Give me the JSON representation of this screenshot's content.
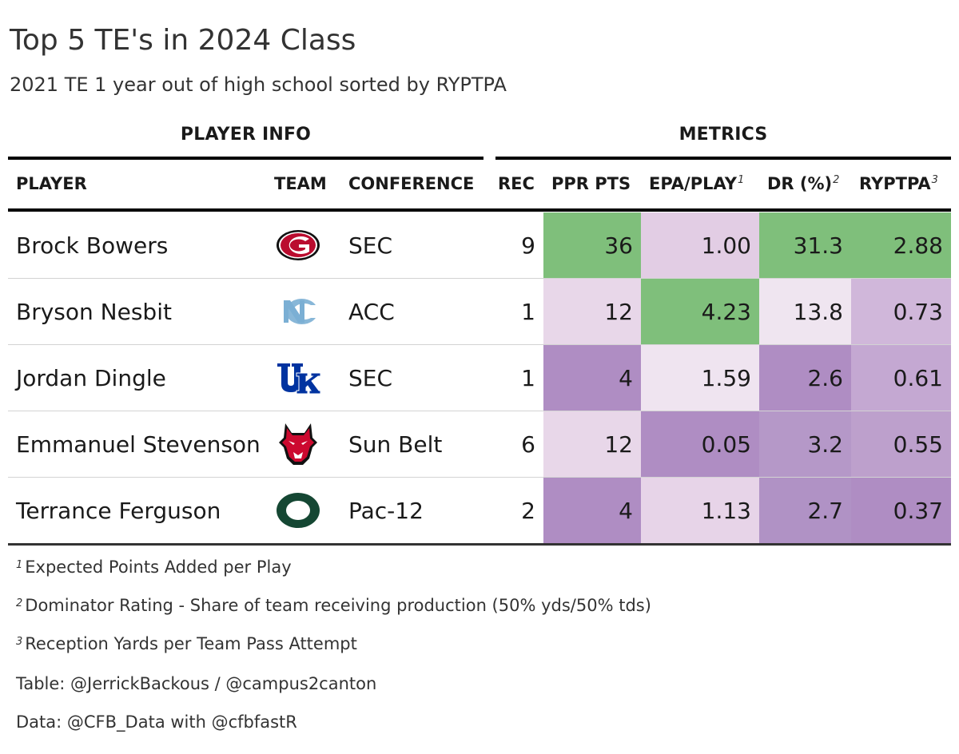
{
  "title": "Top 5 TE's in 2024 Class",
  "subtitle": "2021 TE 1 year out of high school sorted by RYPTPA",
  "spanners": {
    "player_info": "PLAYER INFO",
    "metrics": "METRICS"
  },
  "columns": {
    "player": "PLAYER",
    "team": "TEAM",
    "conference": "CONFERENCE",
    "rec": "REC",
    "ppr": "PPR PTS",
    "epa": "EPA/PLAY",
    "epa_note": "1",
    "dr": "DR (%)",
    "dr_note": "2",
    "ryptpa": "RYPTPA",
    "ryptpa_note": "3"
  },
  "colors": {
    "green": "#7fbf7b",
    "purple_dark": "#af8dc3",
    "purple_light": "#e7d4e8",
    "white": "#f7f7f7"
  },
  "chart_data": {
    "type": "table",
    "rows": [
      {
        "player": "Brock Bowers",
        "team_logo": "georgia-logo-icon",
        "conference": "SEC",
        "rec": "9",
        "ppr": "36",
        "epa": "1.00",
        "dr": "31.3",
        "ryptpa": "2.88",
        "colors": {
          "ppr": "#7fbf7b",
          "epa": "#e2cde4",
          "dr": "#7fbf7b",
          "ryptpa": "#7fbf7b"
        }
      },
      {
        "player": "Bryson Nesbit",
        "team_logo": "unc-logo-icon",
        "conference": "ACC",
        "rec": "1",
        "ppr": "12",
        "epa": "4.23",
        "dr": "13.8",
        "ryptpa": "0.73",
        "colors": {
          "ppr": "#e8d7e9",
          "epa": "#7fbf7b",
          "dr": "#efe5f0",
          "ryptpa": "#d0b7da"
        }
      },
      {
        "player": "Jordan Dingle",
        "team_logo": "kentucky-logo-icon",
        "conference": "SEC",
        "rec": "1",
        "ppr": "4",
        "epa": "1.59",
        "dr": "2.6",
        "ryptpa": "0.61",
        "colors": {
          "ppr": "#af8dc3",
          "epa": "#efe4f0",
          "dr": "#af8dc3",
          "ryptpa": "#c4a8d2"
        }
      },
      {
        "player": "Emmanuel Stevenson",
        "team_logo": "arkansas-state-logo-icon",
        "conference": "Sun Belt",
        "rec": "6",
        "ppr": "12",
        "epa": "0.05",
        "dr": "3.2",
        "ryptpa": "0.55",
        "colors": {
          "ppr": "#e8d7e9",
          "epa": "#af8dc3",
          "dr": "#b598c8",
          "ryptpa": "#bda0cc"
        }
      },
      {
        "player": "Terrance Ferguson",
        "team_logo": "oregon-logo-icon",
        "conference": "Pac-12",
        "rec": "2",
        "ppr": "4",
        "epa": "1.13",
        "dr": "2.7",
        "ryptpa": "0.37",
        "colors": {
          "ppr": "#af8dc3",
          "epa": "#e7d4e8",
          "dr": "#b092c5",
          "ryptpa": "#af8dc3"
        }
      }
    ]
  },
  "footnotes": [
    {
      "mark": "1",
      "text": "Expected Points Added per Play"
    },
    {
      "mark": "2",
      "text": "Dominator Rating - Share of team receiving production (50% yds/50% tds)"
    },
    {
      "mark": "3",
      "text": "Reception Yards per Team Pass Attempt"
    }
  ],
  "source_notes": [
    "Table: @JerrickBackous / @campus2canton",
    "Data: @CFB_Data with @cfbfastR"
  ]
}
